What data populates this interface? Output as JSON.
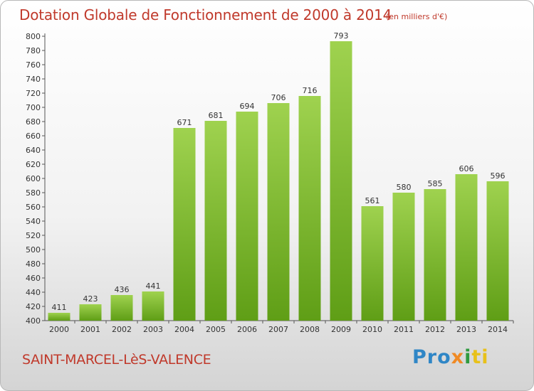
{
  "chart_data": {
    "type": "bar",
    "title": "Dotation Globale de Fonctionnement de 2000 à 2014",
    "subtitle": "(en milliers d'€)",
    "categories": [
      "2000",
      "2001",
      "2002",
      "2003",
      "2004",
      "2005",
      "2006",
      "2007",
      "2008",
      "2009",
      "2010",
      "2011",
      "2012",
      "2013",
      "2014"
    ],
    "values": [
      411,
      423,
      436,
      441,
      671,
      681,
      694,
      706,
      716,
      793,
      561,
      580,
      585,
      606,
      596
    ],
    "data_labels": [
      "411",
      "423",
      "436",
      "441",
      "671",
      "681",
      "694",
      "706",
      "716",
      "793",
      "561",
      "580",
      "585",
      "606",
      "596"
    ],
    "ylim": [
      400,
      800
    ],
    "ytick_step": 20,
    "grid": false,
    "bar_color": "#8cc63f"
  },
  "footer": {
    "city": "SAINT-MARCEL-LèS-VALENCE",
    "logo": {
      "part1": "Pro",
      "part2": "x",
      "part3": "i",
      "part4": "ti"
    }
  }
}
